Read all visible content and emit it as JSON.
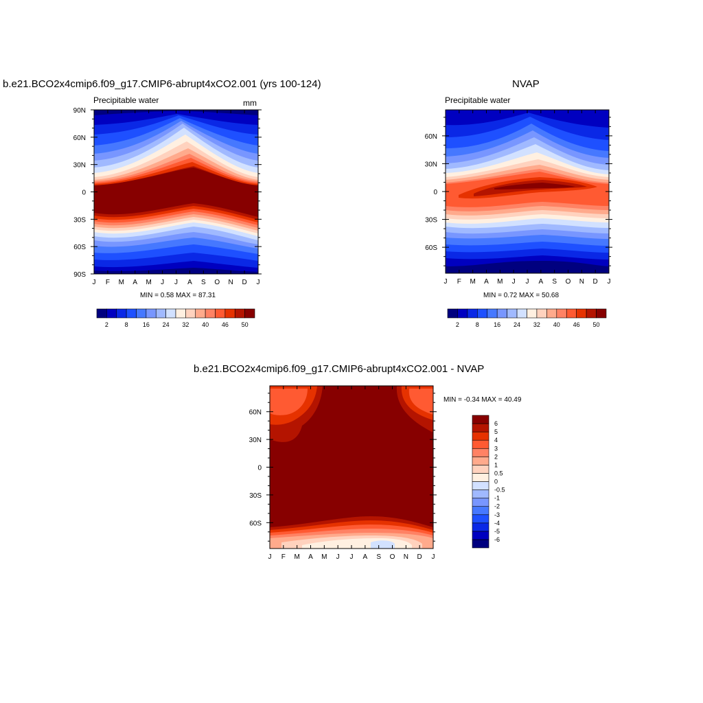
{
  "panels": [
    {
      "title": "b.e21.BCO2x4cmip6.f09_g17.CMIP6-abrupt4xCO2.001 (yrs 100-124)",
      "left_label": "Precipitable water",
      "right_label": "mm",
      "stats": "MIN =   0.58 MAX =  87.31"
    },
    {
      "title": "NVAP",
      "left_label": "Precipitable water",
      "right_label": "",
      "stats": "MIN =   0.72 MAX =  50.68"
    },
    {
      "title": "b.e21.BCO2x4cmip6.f09_g17.CMIP6-abrupt4xCO2.001 - NVAP",
      "left_label": "",
      "right_label": "",
      "stats": "MIN =  -0.34 MAX =  40.49"
    }
  ],
  "chart_data": [
    {
      "type": "heatmap",
      "x_tick_labels": [
        "J",
        "F",
        "M",
        "A",
        "M",
        "J",
        "J",
        "A",
        "S",
        "O",
        "N",
        "D",
        "J"
      ],
      "y_tick_labels": [
        "90N",
        "60N",
        "30N",
        "0",
        "30S",
        "60S",
        "90S"
      ],
      "y_tick_values": [
        90,
        60,
        30,
        0,
        -30,
        -60,
        -90
      ],
      "xlim": [
        0,
        12
      ],
      "ylim": [
        -90,
        90
      ],
      "colorbar_orientation": "horizontal",
      "colorbar_colors": [
        "#00007f",
        "#0000c0",
        "#0a28e6",
        "#1e50ff",
        "#4678ff",
        "#7896ff",
        "#a0b9ff",
        "#d2e1ff",
        "#fff0e1",
        "#ffd2be",
        "#ffaa8c",
        "#ff8264",
        "#ff5a32",
        "#e63200",
        "#b41400",
        "#870000"
      ],
      "colorbar_labels": [
        "2",
        "8",
        "16",
        "24",
        "32",
        "40",
        "46",
        "50"
      ],
      "colorbar_levels": [
        0,
        2,
        4,
        8,
        12,
        16,
        20,
        24,
        28,
        32,
        36,
        40,
        43,
        46,
        48,
        50
      ]
    },
    {
      "type": "heatmap",
      "x_tick_labels": [
        "J",
        "F",
        "M",
        "A",
        "M",
        "J",
        "J",
        "A",
        "S",
        "O",
        "N",
        "D",
        "J"
      ],
      "y_tick_labels": [
        "60N",
        "30N",
        "0",
        "30S",
        "60S"
      ],
      "y_tick_values": [
        60,
        30,
        0,
        -30,
        -60
      ],
      "xlim": [
        0,
        12
      ],
      "ylim": [
        -88,
        88
      ],
      "colorbar_orientation": "horizontal",
      "colorbar_colors": [
        "#00007f",
        "#0000c0",
        "#0a28e6",
        "#1e50ff",
        "#4678ff",
        "#7896ff",
        "#a0b9ff",
        "#d2e1ff",
        "#fff0e1",
        "#ffd2be",
        "#ffaa8c",
        "#ff8264",
        "#ff5a32",
        "#e63200",
        "#b41400",
        "#870000"
      ],
      "colorbar_labels": [
        "2",
        "8",
        "16",
        "24",
        "32",
        "40",
        "46",
        "50"
      ],
      "colorbar_levels": [
        0,
        2,
        4,
        8,
        12,
        16,
        20,
        24,
        28,
        32,
        36,
        40,
        43,
        46,
        48,
        50
      ]
    },
    {
      "type": "heatmap",
      "x_tick_labels": [
        "J",
        "F",
        "M",
        "A",
        "M",
        "J",
        "J",
        "A",
        "S",
        "O",
        "N",
        "D",
        "J"
      ],
      "y_tick_labels": [
        "60N",
        "30N",
        "0",
        "30S",
        "60S"
      ],
      "y_tick_values": [
        60,
        30,
        0,
        -30,
        -60
      ],
      "xlim": [
        0,
        12
      ],
      "ylim": [
        -88,
        88
      ],
      "colorbar_orientation": "vertical",
      "colorbar_colors": [
        "#00007f",
        "#0000c0",
        "#0a28e6",
        "#1e50ff",
        "#4678ff",
        "#7896ff",
        "#a0b9ff",
        "#d2e1ff",
        "#fff0e1",
        "#ffd2be",
        "#ffaa8c",
        "#ff8264",
        "#ff5a32",
        "#e63200",
        "#b41400",
        "#870000"
      ],
      "colorbar_labels": [
        "-6",
        "-5",
        "-4",
        "-3",
        "-2",
        "-1",
        "-0.5",
        "0",
        "0.5",
        "1",
        "2",
        "3",
        "4",
        "5",
        "6"
      ],
      "colorbar_levels": [
        -6,
        -5,
        -4,
        -3,
        -2,
        -1,
        -0.5,
        0,
        0.5,
        1,
        2,
        3,
        4,
        5,
        6
      ]
    }
  ]
}
